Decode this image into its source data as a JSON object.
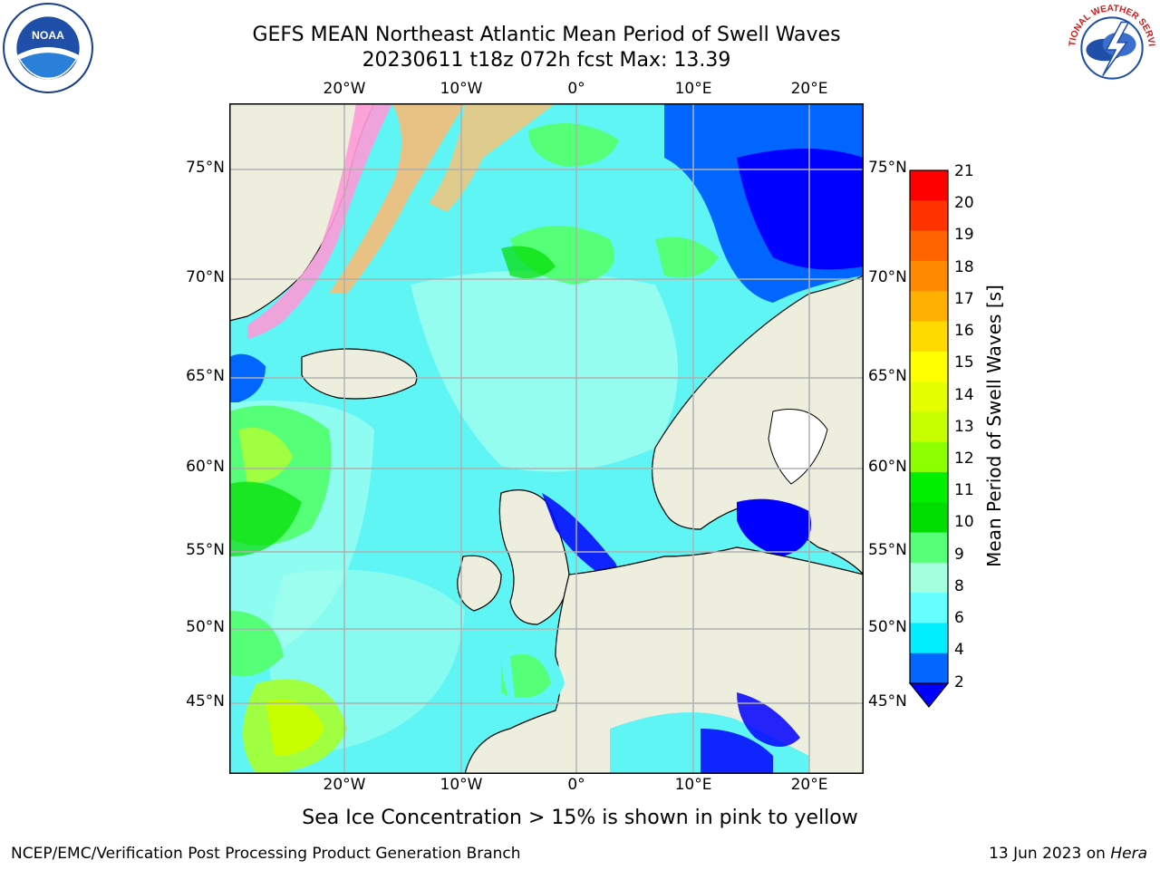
{
  "title": {
    "line1": "GEFS MEAN Northeast Atlantic Mean Period of Swell Waves",
    "line2": "20230611 t18z 072h fcst   Max: 13.39"
  },
  "logos": {
    "left": {
      "icon": "noaa-logo",
      "text": "NOAA"
    },
    "right": {
      "icon": "nws-logo",
      "text": "NATIONAL WEATHER SERVICE"
    }
  },
  "map": {
    "lon_labels": [
      "20°W",
      "10°W",
      "0°",
      "10°E",
      "20°E"
    ],
    "lat_labels": [
      "75°N",
      "70°N",
      "65°N",
      "60°N",
      "55°N",
      "50°N",
      "45°N"
    ],
    "colors": {
      "ocean_base": "#5ff5f5",
      "land": "#eeeedf",
      "grid": "#b0b0b0"
    }
  },
  "colorbar": {
    "label": "Mean Period of Swell Waves [s]",
    "ticks": [
      "21",
      "20",
      "19",
      "18",
      "17",
      "16",
      "15",
      "14",
      "13",
      "12",
      "11",
      "10",
      "9",
      "8",
      "6",
      "4",
      "2"
    ],
    "colors_top_to_bottom": [
      "#ff0000",
      "#ff3300",
      "#ff6400",
      "#ff8a00",
      "#ffb000",
      "#ffda00",
      "#ffff00",
      "#e6ff00",
      "#c8ff00",
      "#8cff00",
      "#00f000",
      "#00dd00",
      "#55ff77",
      "#a3ffdd",
      "#66ffff",
      "#00eeff",
      "#0066ff"
    ],
    "extend_color": "#0000ff"
  },
  "notes": {
    "ice": "Sea Ice Concentration > 15% is shown in pink to yellow"
  },
  "footer": {
    "left": "NCEP/EMC/Verification Post Processing Product Generation Branch",
    "date": "13 Jun 2023 on ",
    "machine": "Hera"
  }
}
